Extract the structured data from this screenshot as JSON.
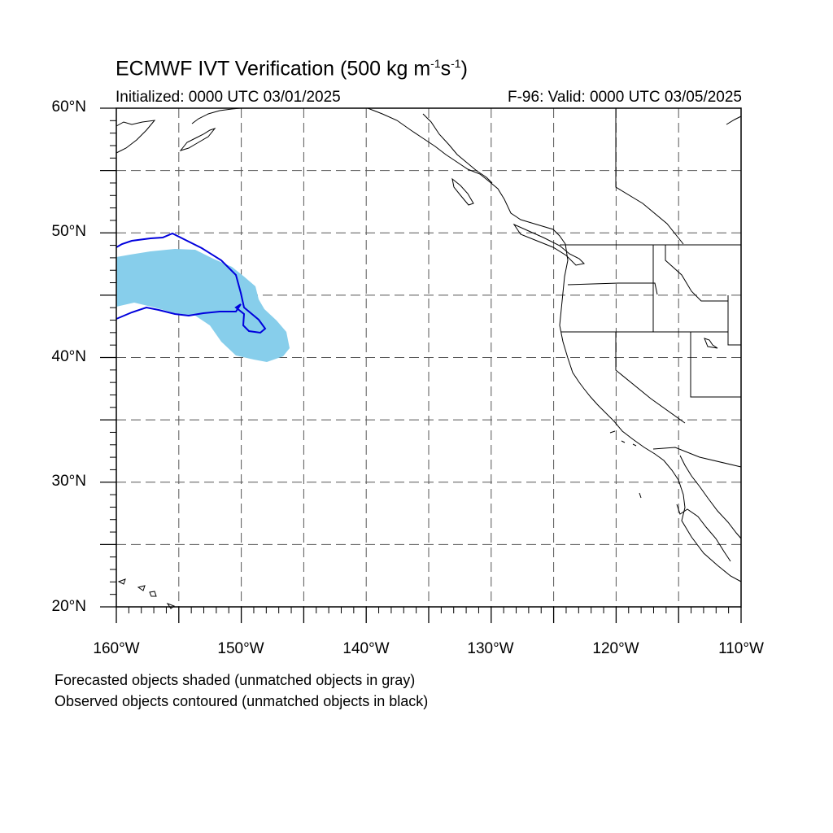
{
  "header": {
    "title_main": "ECMWF IVT Verification (500 kg m",
    "title_exp1": "-1",
    "title_mid": "s",
    "title_exp2": "-1",
    "title_end": ")",
    "initialized": "Initialized: 0000 UTC 03/01/2025",
    "valid": "F-96: Valid: 0000 UTC 03/05/2025"
  },
  "axes": {
    "lat_labels": [
      "60°N",
      "50°N",
      "40°N",
      "30°N",
      "20°N"
    ],
    "lon_labels": [
      "160°W",
      "150°W",
      "140°W",
      "130°W",
      "120°W",
      "110°W"
    ],
    "lat_range": [
      20,
      60
    ],
    "lon_range": [
      -160,
      -110
    ],
    "grid": "dashed, every 5°"
  },
  "legend": {
    "line1": "Forecasted objects shaded (unmatched objects in gray)",
    "line2": "Observed objects contoured (unmatched objects in black)"
  },
  "colors": {
    "forecast_fill": "#87ceeb",
    "observed_contour": "#0000dd",
    "coastline": "#000000",
    "grid": "#555555"
  }
}
